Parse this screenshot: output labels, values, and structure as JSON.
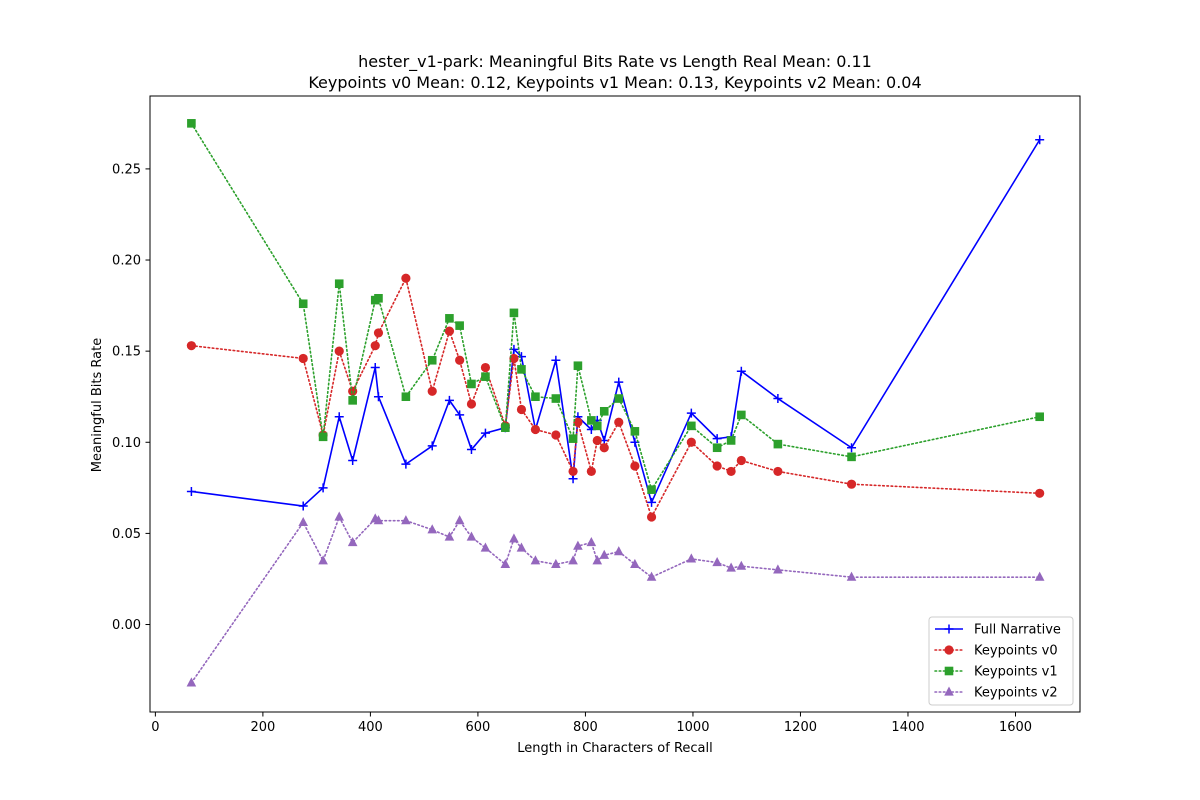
{
  "chart_data": {
    "type": "line",
    "title_lines": [
      "hester_v1-park: Meaningful Bits Rate vs Length Real Mean: 0.11",
      "Keypoints v0 Mean: 0.12, Keypoints v1 Mean: 0.13, Keypoints v2 Mean: 0.04"
    ],
    "xlabel": "Length in Characters of Recall",
    "ylabel": "Meaningful Bits Rate",
    "xlim": [
      -10,
      1720
    ],
    "ylim": [
      -0.048,
      0.29
    ],
    "x_ticks": [
      0,
      200,
      400,
      600,
      800,
      1000,
      1200,
      1400,
      1600
    ],
    "y_ticks": [
      0.0,
      0.05,
      0.1,
      0.15,
      0.2,
      0.25
    ],
    "y_tick_labels": [
      "0.00",
      "0.05",
      "0.10",
      "0.15",
      "0.20",
      "0.25"
    ],
    "grid": false,
    "legend_position": "lower-right",
    "x": [
      67,
      275,
      312,
      342,
      367,
      409,
      415,
      466,
      515,
      547,
      566,
      588,
      614,
      651,
      667,
      681,
      707,
      745,
      777,
      786,
      811,
      822,
      835,
      862,
      892,
      923,
      997,
      1045,
      1071,
      1090,
      1158,
      1295,
      1645
    ],
    "series": [
      {
        "name": "Full Narrative",
        "color": "#0000ff",
        "linestyle": "solid",
        "marker": "plus",
        "values": [
          0.073,
          0.065,
          0.075,
          0.114,
          0.09,
          0.141,
          0.125,
          0.088,
          0.098,
          0.123,
          0.115,
          0.096,
          0.105,
          0.108,
          0.151,
          0.147,
          0.107,
          0.145,
          0.08,
          0.114,
          0.107,
          0.112,
          0.101,
          0.133,
          0.1,
          0.067,
          0.116,
          0.102,
          0.103,
          0.139,
          0.124,
          0.097,
          0.266
        ]
      },
      {
        "name": "Keypoints v0",
        "color": "#d62728",
        "linestyle": "dotted",
        "marker": "circle",
        "values": [
          0.153,
          0.146,
          0.104,
          0.15,
          0.128,
          0.153,
          0.16,
          0.19,
          0.128,
          0.161,
          0.145,
          0.121,
          0.141,
          0.109,
          0.146,
          0.118,
          0.107,
          0.104,
          0.084,
          0.111,
          0.084,
          0.101,
          0.097,
          0.111,
          0.087,
          0.059,
          0.1,
          0.087,
          0.084,
          0.09,
          0.084,
          0.077,
          0.072
        ]
      },
      {
        "name": "Keypoints v1",
        "color": "#2ca02c",
        "linestyle": "dotted",
        "marker": "square",
        "values": [
          0.275,
          0.176,
          0.103,
          0.187,
          0.123,
          0.178,
          0.179,
          0.125,
          0.145,
          0.168,
          0.164,
          0.132,
          0.136,
          0.108,
          0.171,
          0.14,
          0.125,
          0.124,
          0.102,
          0.142,
          0.112,
          0.109,
          0.117,
          0.124,
          0.106,
          0.074,
          0.109,
          0.097,
          0.101,
          0.115,
          0.099,
          0.092,
          0.114
        ]
      },
      {
        "name": "Keypoints v2",
        "color": "#9467bd",
        "linestyle": "dotted",
        "marker": "triangle",
        "values": [
          -0.032,
          0.056,
          0.035,
          0.059,
          0.045,
          0.058,
          0.057,
          0.057,
          0.052,
          0.048,
          0.057,
          0.048,
          0.042,
          0.033,
          0.047,
          0.042,
          0.035,
          0.033,
          0.035,
          0.043,
          0.045,
          0.035,
          0.038,
          0.04,
          0.033,
          0.026,
          0.036,
          0.034,
          0.031,
          0.032,
          0.03,
          0.026,
          0.026
        ]
      }
    ]
  }
}
